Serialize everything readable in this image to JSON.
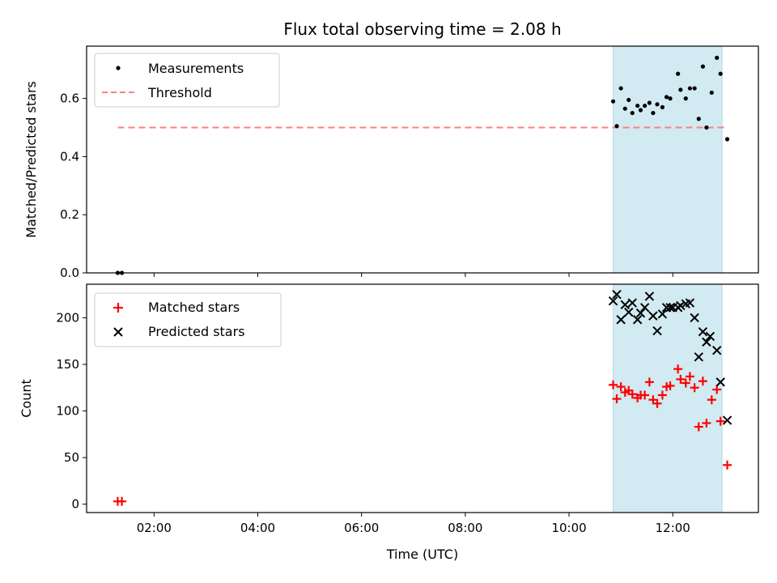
{
  "chart_data": {
    "type": "scatter",
    "title": "Flux total observing time = 2.08 h",
    "xlabel": "Time (UTC)",
    "x_units": "hours UTC",
    "xlim": [
      0.7,
      13.65
    ],
    "xticks": [
      {
        "value": 2,
        "label": "02:00"
      },
      {
        "value": 4,
        "label": "04:00"
      },
      {
        "value": 6,
        "label": "06:00"
      },
      {
        "value": 8,
        "label": "08:00"
      },
      {
        "value": 10,
        "label": "10:00"
      },
      {
        "value": 12,
        "label": "12:00"
      }
    ],
    "shaded_span": {
      "x0": 10.85,
      "x1": 12.95,
      "color": "#add8e6"
    },
    "colors": {
      "measurements": "#000000",
      "threshold": "#ff7f7f",
      "matched": "#ff0000",
      "predicted": "#000000",
      "frame": "#000000"
    },
    "panels": [
      {
        "id": "ratio",
        "ylabel": "Matched/Predicted stars",
        "ylim": [
          0,
          0.78
        ],
        "yticks": [
          {
            "value": 0,
            "label": "0.0"
          },
          {
            "value": 0.2,
            "label": "0.2"
          },
          {
            "value": 0.4,
            "label": "0.4"
          },
          {
            "value": 0.6,
            "label": "0.6"
          }
        ],
        "legend": [
          {
            "label": "Measurements",
            "marker": "dot"
          },
          {
            "label": "Threshold",
            "marker": "dashed-line"
          }
        ],
        "threshold": {
          "y": 0.5,
          "x0": 1.3,
          "x1": 13.0
        },
        "series": [
          {
            "name": "Measurements",
            "marker": "dot",
            "points": [
              [
                1.3,
                0.0
              ],
              [
                1.38,
                0.0
              ],
              [
                10.85,
                0.59
              ],
              [
                10.92,
                0.505
              ],
              [
                11.0,
                0.635
              ],
              [
                11.08,
                0.565
              ],
              [
                11.15,
                0.595
              ],
              [
                11.22,
                0.55
              ],
              [
                11.32,
                0.575
              ],
              [
                11.38,
                0.56
              ],
              [
                11.46,
                0.575
              ],
              [
                11.55,
                0.585
              ],
              [
                11.62,
                0.55
              ],
              [
                11.7,
                0.58
              ],
              [
                11.8,
                0.57
              ],
              [
                11.88,
                0.605
              ],
              [
                11.95,
                0.6
              ],
              [
                12.1,
                0.685
              ],
              [
                12.15,
                0.63
              ],
              [
                12.25,
                0.6
              ],
              [
                12.33,
                0.635
              ],
              [
                12.42,
                0.635
              ],
              [
                12.5,
                0.53
              ],
              [
                12.58,
                0.71
              ],
              [
                12.65,
                0.5
              ],
              [
                12.75,
                0.62
              ],
              [
                12.85,
                0.74
              ],
              [
                12.92,
                0.685
              ],
              [
                13.05,
                0.46
              ]
            ]
          }
        ]
      },
      {
        "id": "counts",
        "ylabel": "Count",
        "ylim": [
          -9,
          236
        ],
        "yticks": [
          {
            "value": 0,
            "label": "0"
          },
          {
            "value": 50,
            "label": "50"
          },
          {
            "value": 100,
            "label": "100"
          },
          {
            "value": 150,
            "label": "150"
          },
          {
            "value": 200,
            "label": "200"
          }
        ],
        "legend": [
          {
            "label": "Matched stars",
            "marker": "plus"
          },
          {
            "label": "Predicted stars",
            "marker": "cross"
          }
        ],
        "series": [
          {
            "name": "Matched stars",
            "marker": "plus",
            "points": [
              [
                1.3,
                3
              ],
              [
                1.38,
                3
              ],
              [
                10.85,
                128
              ],
              [
                10.92,
                113
              ],
              [
                11.0,
                126
              ],
              [
                11.08,
                120
              ],
              [
                11.15,
                122
              ],
              [
                11.22,
                118
              ],
              [
                11.32,
                114
              ],
              [
                11.38,
                117
              ],
              [
                11.46,
                117
              ],
              [
                11.55,
                131
              ],
              [
                11.62,
                112
              ],
              [
                11.7,
                108
              ],
              [
                11.8,
                117
              ],
              [
                11.88,
                126
              ],
              [
                11.95,
                127
              ],
              [
                12.1,
                145
              ],
              [
                12.15,
                134
              ],
              [
                12.25,
                130
              ],
              [
                12.33,
                137
              ],
              [
                12.42,
                125
              ],
              [
                12.5,
                83
              ],
              [
                12.58,
                132
              ],
              [
                12.65,
                87
              ],
              [
                12.75,
                112
              ],
              [
                12.85,
                123
              ],
              [
                12.92,
                89
              ],
              [
                13.05,
                42
              ]
            ]
          },
          {
            "name": "Predicted stars",
            "marker": "cross",
            "points": [
              [
                10.85,
                218
              ],
              [
                10.92,
                225
              ],
              [
                11.0,
                198
              ],
              [
                11.08,
                214
              ],
              [
                11.15,
                206
              ],
              [
                11.22,
                216
              ],
              [
                11.32,
                198
              ],
              [
                11.38,
                205
              ],
              [
                11.46,
                211
              ],
              [
                11.55,
                223
              ],
              [
                11.62,
                202
              ],
              [
                11.7,
                186
              ],
              [
                11.8,
                204
              ],
              [
                11.88,
                211
              ],
              [
                11.95,
                211
              ],
              [
                12.0,
                211
              ],
              [
                12.1,
                211
              ],
              [
                12.15,
                213
              ],
              [
                12.25,
                215
              ],
              [
                12.33,
                216
              ],
              [
                12.42,
                200
              ],
              [
                12.5,
                158
              ],
              [
                12.58,
                185
              ],
              [
                12.65,
                174
              ],
              [
                12.72,
                180
              ],
              [
                12.85,
                165
              ],
              [
                12.92,
                131
              ],
              [
                13.05,
                90
              ]
            ]
          }
        ]
      }
    ]
  }
}
